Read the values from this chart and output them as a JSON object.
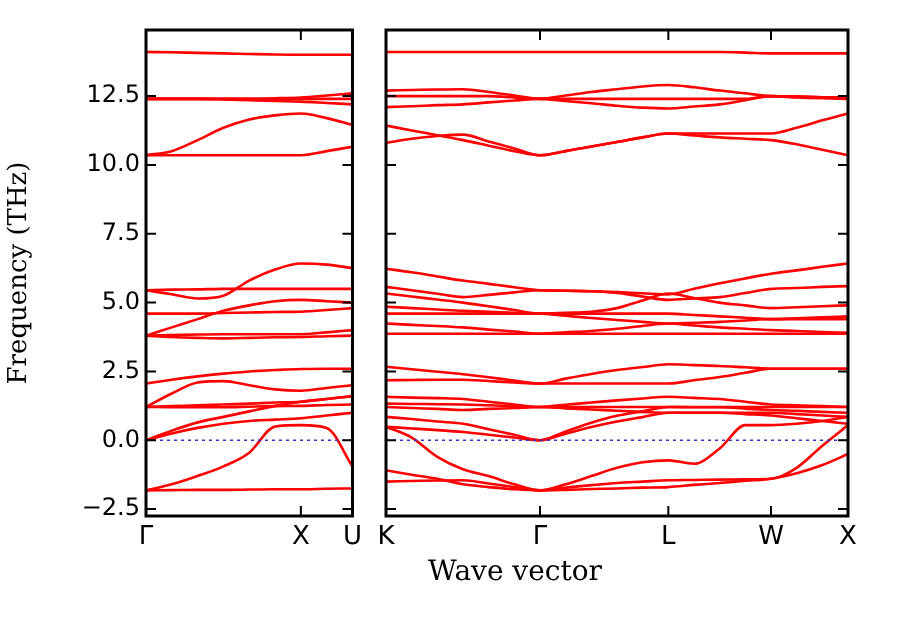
{
  "chart_data": [
    {
      "type": "line",
      "ylabel": "Frequency (THz)",
      "marker": "none",
      "legend": false,
      "grid": false,
      "categories": [
        "Γ",
        null,
        null,
        null,
        null,
        null,
        "X",
        null,
        "U"
      ],
      "ylim": [
        -2.75,
        14.9
      ],
      "yticks": [
        {
          "value": -2.5,
          "label": "−2.5"
        },
        {
          "value": 0,
          "label": "0.0"
        },
        {
          "value": 2.5,
          "label": "2.5"
        },
        {
          "value": 5,
          "label": "5.0"
        },
        {
          "value": 7.5,
          "label": "7.5"
        },
        {
          "value": 10,
          "label": "10.0"
        },
        {
          "value": 12.5,
          "label": "12.5"
        }
      ],
      "ref_lines": [
        {
          "axis": "y",
          "value": 0,
          "color": "#3333cc",
          "line_style": "dotted"
        }
      ],
      "series": [
        {
          "color": "#ff0000",
          "values": [
            14.1,
            14.09,
            14.07,
            14.05,
            14.03,
            14.01,
            14.0,
            14.0,
            14.0
          ]
        },
        {
          "color": "#ff0000",
          "values": [
            12.4,
            12.4,
            12.4,
            12.4,
            12.4,
            12.42,
            12.45,
            12.52,
            12.6
          ]
        },
        {
          "color": "#ff0000",
          "values": [
            12.4,
            12.4,
            12.4,
            12.4,
            12.4,
            12.4,
            12.4,
            12.4,
            12.4
          ]
        },
        {
          "color": "#ff0000",
          "values": [
            12.4,
            12.4,
            12.4,
            12.38,
            12.35,
            12.32,
            12.3,
            12.25,
            12.2
          ]
        },
        {
          "color": "#ff0000",
          "values": [
            10.35,
            10.5,
            10.9,
            11.35,
            11.65,
            11.8,
            11.87,
            11.7,
            11.45
          ]
        },
        {
          "color": "#ff0000",
          "values": [
            10.35,
            10.35,
            10.35,
            10.35,
            10.35,
            10.35,
            10.35,
            10.5,
            10.66
          ]
        },
        {
          "color": "#ff0000",
          "values": [
            5.45,
            5.3,
            5.15,
            5.25,
            5.8,
            6.2,
            6.42,
            6.38,
            6.25
          ]
        },
        {
          "color": "#ff0000",
          "values": [
            5.45,
            5.47,
            5.48,
            5.5,
            5.5,
            5.5,
            5.5,
            5.5,
            5.5
          ]
        },
        {
          "color": "#ff0000",
          "values": [
            4.6,
            4.6,
            4.6,
            4.62,
            4.64,
            4.66,
            4.67,
            4.73,
            4.8
          ]
        },
        {
          "color": "#ff0000",
          "values": [
            3.8,
            4.1,
            4.4,
            4.7,
            4.9,
            5.05,
            5.1,
            5.05,
            5.0
          ]
        },
        {
          "color": "#ff0000",
          "values": [
            3.8,
            3.82,
            3.84,
            3.85,
            3.85,
            3.85,
            3.85,
            3.92,
            4.0
          ]
        },
        {
          "color": "#ff0000",
          "values": [
            3.8,
            3.75,
            3.72,
            3.7,
            3.72,
            3.74,
            3.75,
            3.78,
            3.8
          ]
        },
        {
          "color": "#ff0000",
          "values": [
            2.06,
            2.2,
            2.32,
            2.42,
            2.5,
            2.55,
            2.59,
            2.6,
            2.6
          ]
        },
        {
          "color": "#ff0000",
          "values": [
            1.21,
            1.7,
            2.1,
            2.15,
            2.0,
            1.85,
            1.8,
            1.9,
            2.0
          ]
        },
        {
          "color": "#ff0000",
          "values": [
            1.21,
            1.24,
            1.27,
            1.3,
            1.33,
            1.37,
            1.4,
            1.5,
            1.6
          ]
        },
        {
          "color": "#ff0000",
          "values": [
            1.21,
            1.2,
            1.2,
            1.2,
            1.22,
            1.24,
            1.25,
            1.28,
            1.3
          ]
        },
        {
          "color": "#ff0000",
          "values": [
            0,
            0.35,
            0.65,
            0.85,
            1.05,
            1.25,
            1.4,
            1.5,
            1.6
          ]
        },
        {
          "color": "#ff0000",
          "values": [
            0,
            0.25,
            0.45,
            0.6,
            0.7,
            0.75,
            0.8,
            0.9,
            1.0
          ]
        },
        {
          "color": "#ff0000",
          "values": [
            -1.82,
            -1.6,
            -1.3,
            -0.95,
            -0.45,
            0.5,
            0.55,
            0.45,
            -0.95
          ]
        },
        {
          "color": "#ff0000",
          "values": [
            -1.82,
            -1.81,
            -1.8,
            -1.8,
            -1.79,
            -1.78,
            -1.78,
            -1.76,
            -1.75
          ]
        }
      ]
    },
    {
      "type": "line",
      "xlabel": "Wave vector",
      "marker": "none",
      "legend": false,
      "grid": false,
      "tick_labels": "x",
      "categories": [
        "K",
        null,
        null,
        null,
        null,
        null,
        "Γ",
        null,
        null,
        null,
        null,
        "L",
        null,
        null,
        null,
        "W",
        null,
        null,
        "X"
      ],
      "ylim": [
        -2.75,
        14.9
      ],
      "yticks": [
        {
          "value": -2.5,
          "label": null
        },
        {
          "value": 0,
          "label": null
        },
        {
          "value": 2.5,
          "label": null
        },
        {
          "value": 5,
          "label": null
        },
        {
          "value": 7.5,
          "label": null
        },
        {
          "value": 10,
          "label": null
        },
        {
          "value": 12.5,
          "label": null
        }
      ],
      "ref_lines": [
        {
          "axis": "y",
          "value": 0,
          "color": "#3333cc",
          "line_style": "dotted"
        }
      ],
      "series": [
        {
          "color": "#ff0000",
          "values": [
            14.1,
            14.1,
            14.1,
            14.1,
            14.1,
            14.1,
            14.1,
            14.1,
            14.1,
            14.1,
            14.1,
            14.1,
            14.1,
            14.1,
            14.08,
            14.05,
            14.05,
            14.05,
            14.05
          ]
        },
        {
          "color": "#ff0000",
          "values": [
            12.7,
            12.72,
            12.74,
            12.75,
            12.65,
            12.52,
            12.4,
            12.52,
            12.65,
            12.75,
            12.85,
            12.9,
            12.82,
            12.7,
            12.6,
            12.5,
            12.48,
            12.46,
            12.45
          ]
        },
        {
          "color": "#ff0000",
          "values": [
            12.5,
            12.5,
            12.5,
            12.5,
            12.5,
            12.45,
            12.4,
            12.4,
            12.4,
            12.4,
            12.4,
            12.4,
            12.4,
            12.4,
            12.4,
            12.5,
            12.45,
            12.42,
            12.4
          ]
        },
        {
          "color": "#ff0000",
          "values": [
            12.1,
            12.13,
            12.17,
            12.2,
            12.27,
            12.34,
            12.4,
            12.32,
            12.24,
            12.15,
            12.08,
            12.05,
            12.12,
            12.2,
            12.35,
            12.5,
            12.48,
            12.46,
            12.45
          ]
        },
        {
          "color": "#ff0000",
          "values": [
            11.43,
            11.25,
            11.08,
            10.9,
            10.7,
            10.5,
            10.35,
            10.5,
            10.67,
            10.83,
            11.0,
            11.14,
            11.14,
            11.14,
            11.14,
            11.14,
            11.35,
            11.62,
            11.87
          ]
        },
        {
          "color": "#ff0000",
          "values": [
            10.8,
            10.95,
            11.05,
            11.1,
            10.85,
            10.6,
            10.35,
            10.5,
            10.67,
            10.83,
            11.0,
            11.14,
            11.07,
            11.0,
            10.95,
            10.9,
            10.75,
            10.55,
            10.35
          ]
        },
        {
          "color": "#ff0000",
          "values": [
            6.23,
            6.1,
            5.95,
            5.8,
            5.68,
            5.56,
            5.45,
            5.43,
            5.41,
            5.38,
            5.34,
            5.3,
            5.5,
            5.7,
            5.88,
            6.05,
            6.17,
            6.3,
            6.42
          ]
        },
        {
          "color": "#ff0000",
          "values": [
            5.57,
            5.45,
            5.32,
            5.2,
            5.28,
            5.37,
            5.45,
            5.43,
            5.41,
            5.35,
            5.22,
            5.1,
            5.15,
            5.2,
            5.35,
            5.5,
            5.53,
            5.57,
            5.6
          ]
        },
        {
          "color": "#ff0000",
          "values": [
            5.33,
            5.22,
            5.11,
            5.0,
            4.87,
            4.73,
            4.6,
            4.63,
            4.67,
            4.8,
            5.08,
            5.33,
            5.17,
            5.0,
            4.9,
            4.8,
            4.83,
            4.87,
            4.9
          ]
        },
        {
          "color": "#ff0000",
          "values": [
            4.85,
            4.8,
            4.75,
            4.7,
            4.67,
            4.63,
            4.6,
            4.6,
            4.6,
            4.6,
            4.6,
            4.6,
            4.55,
            4.5,
            4.45,
            4.4,
            4.43,
            4.47,
            4.5
          ]
        },
        {
          "color": "#ff0000",
          "values": [
            4.6,
            4.6,
            4.6,
            4.6,
            4.6,
            4.6,
            4.6,
            4.52,
            4.44,
            4.37,
            4.3,
            4.24,
            4.27,
            4.3,
            4.35,
            4.4,
            4.4,
            4.4,
            4.4
          ]
        },
        {
          "color": "#ff0000",
          "values": [
            4.24,
            4.19,
            4.15,
            4.1,
            4.02,
            3.95,
            3.87,
            3.92,
            3.97,
            4.05,
            4.15,
            4.24,
            4.17,
            4.1,
            4.05,
            4.0,
            3.97,
            3.93,
            3.9
          ]
        },
        {
          "color": "#ff0000",
          "values": [
            3.87,
            3.87,
            3.87,
            3.87,
            3.87,
            3.87,
            3.87,
            3.87,
            3.87,
            3.87,
            3.87,
            3.87,
            3.87,
            3.87,
            3.87,
            3.87,
            3.87,
            3.87,
            3.87
          ]
        },
        {
          "color": "#ff0000",
          "values": [
            2.67,
            2.58,
            2.49,
            2.4,
            2.29,
            2.17,
            2.06,
            2.24,
            2.41,
            2.55,
            2.66,
            2.76,
            2.73,
            2.7,
            2.65,
            2.6,
            2.6,
            2.6,
            2.6
          ]
        },
        {
          "color": "#ff0000",
          "values": [
            2.18,
            2.19,
            2.2,
            2.2,
            2.15,
            2.1,
            2.06,
            2.06,
            2.06,
            2.06,
            2.06,
            2.06,
            2.18,
            2.3,
            2.45,
            2.6,
            2.6,
            2.6,
            2.6
          ]
        },
        {
          "color": "#ff0000",
          "values": [
            1.58,
            1.55,
            1.53,
            1.5,
            1.4,
            1.3,
            1.21,
            1.29,
            1.37,
            1.45,
            1.52,
            1.58,
            1.54,
            1.5,
            1.4,
            1.3,
            1.27,
            1.24,
            1.21
          ]
        },
        {
          "color": "#ff0000",
          "values": [
            1.33,
            1.32,
            1.31,
            1.3,
            1.27,
            1.24,
            1.21,
            1.21,
            1.21,
            1.21,
            1.21,
            1.21,
            1.21,
            1.21,
            1.21,
            1.21,
            1.21,
            1.21,
            1.21
          ]
        },
        {
          "color": "#ff0000",
          "values": [
            1.21,
            1.17,
            1.14,
            1.1,
            1.14,
            1.17,
            1.21,
            1.16,
            1.12,
            1.07,
            1.03,
            1.0,
            1.0,
            1.0,
            1.0,
            1.0,
            0.95,
            0.9,
            0.85
          ]
        },
        {
          "color": "#ff0000",
          "values": [
            0.85,
            0.77,
            0.68,
            0.6,
            0.4,
            0.2,
            0,
            0.32,
            0.64,
            0.89,
            1.05,
            1.21,
            1.2,
            1.2,
            1.15,
            1.1,
            1.07,
            1.03,
            1.0
          ]
        },
        {
          "color": "#ff0000",
          "values": [
            0.49,
            0.43,
            0.37,
            0.3,
            0.2,
            0.1,
            0,
            0.24,
            0.48,
            0.68,
            0.84,
            1.0,
            1.0,
            1.0,
            0.95,
            0.9,
            0.8,
            0.7,
            0.6
          ]
        },
        {
          "color": "#ff0000",
          "values": [
            0.49,
            0.1,
            -0.6,
            -1.05,
            -1.3,
            -1.6,
            -1.82,
            -1.6,
            -1.3,
            -1.0,
            -0.8,
            -0.73,
            -0.85,
            -0.3,
            0.55,
            0.55,
            0.6,
            0.7,
            0.85
          ]
        },
        {
          "color": "#ff0000",
          "values": [
            -1.09,
            -1.25,
            -1.4,
            -1.6,
            -1.7,
            -1.78,
            -1.82,
            -1.72,
            -1.63,
            -1.55,
            -1.5,
            -1.45,
            -1.44,
            -1.43,
            -1.42,
            -1.4,
            -1.0,
            -0.2,
            0.55
          ]
        },
        {
          "color": "#ff0000",
          "values": [
            -1.5,
            -1.48,
            -1.46,
            -1.45,
            -1.57,
            -1.7,
            -1.82,
            -1.8,
            -1.77,
            -1.75,
            -1.72,
            -1.7,
            -1.62,
            -1.55,
            -1.47,
            -1.4,
            -1.2,
            -0.9,
            -0.5
          ]
        }
      ]
    }
  ]
}
